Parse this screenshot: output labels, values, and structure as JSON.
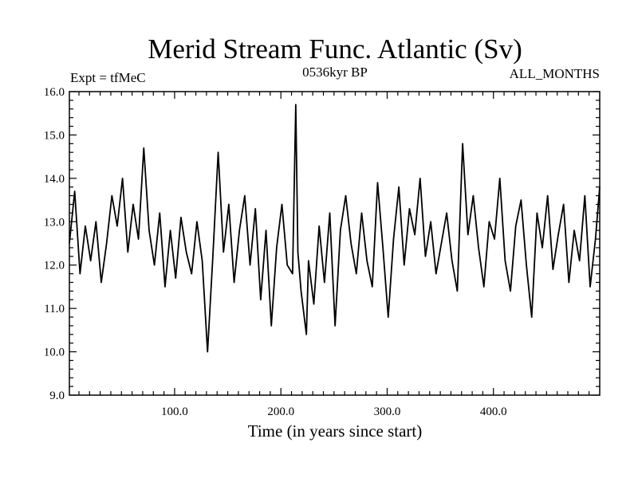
{
  "chart_data": {
    "type": "line",
    "title": "Merid Stream Func. Atlantic (Sv)",
    "subtitle_left": "Expt = tfMeC",
    "subtitle_center": "0536kyr BP",
    "subtitle_right": "ALL_MONTHS",
    "xlabel": "Time (in years since start)",
    "ylabel": "",
    "xlim": [
      1,
      500
    ],
    "ylim": [
      9.0,
      16.0
    ],
    "xticks": [
      100,
      200,
      300,
      400
    ],
    "xtick_labels": [
      "100.0",
      "200.0",
      "300.0",
      "400.0"
    ],
    "yticks": [
      9,
      10,
      11,
      12,
      13,
      14,
      15,
      16
    ],
    "ytick_labels": [
      "9.0",
      "10.0",
      "11.0",
      "12.0",
      "13.0",
      "14.0",
      "15.0",
      "16.0"
    ],
    "grid": false,
    "line_color": "#000000",
    "series": [
      {
        "x": [
          1,
          6,
          11,
          16,
          21,
          26,
          31,
          36,
          41,
          46,
          51,
          56,
          61,
          66,
          71,
          76,
          81,
          86,
          91,
          96,
          101,
          106,
          111,
          116,
          121,
          126,
          131,
          136,
          141,
          146,
          151,
          156,
          161,
          166,
          171,
          176,
          181,
          186,
          191,
          196,
          201,
          206,
          211,
          214,
          216,
          219,
          224,
          226,
          231,
          236,
          241,
          246,
          251,
          256,
          261,
          266,
          271,
          276,
          281,
          286,
          291,
          296,
          301,
          306,
          311,
          316,
          321,
          326,
          331,
          336,
          341,
          346,
          351,
          356,
          361,
          366,
          371,
          376,
          381,
          386,
          391,
          396,
          401,
          406,
          411,
          416,
          421,
          426,
          431,
          436,
          441,
          446,
          451,
          456,
          461,
          466,
          471,
          476,
          481,
          486,
          491,
          496,
          500
        ],
        "values": [
          12.5,
          13.7,
          11.8,
          12.9,
          12.1,
          13.0,
          11.6,
          12.5,
          13.6,
          12.9,
          14.0,
          12.3,
          13.4,
          12.6,
          14.7,
          12.8,
          12.0,
          13.2,
          11.5,
          12.8,
          11.7,
          13.1,
          12.3,
          11.8,
          13.0,
          12.1,
          10.0,
          12.2,
          14.6,
          12.3,
          13.4,
          11.6,
          12.8,
          13.6,
          12.0,
          13.3,
          11.2,
          12.8,
          10.6,
          12.4,
          13.4,
          12.0,
          11.8,
          15.7,
          12.3,
          11.4,
          10.4,
          12.1,
          11.1,
          12.9,
          11.6,
          13.2,
          10.6,
          12.8,
          13.6,
          12.5,
          11.8,
          13.2,
          12.1,
          11.5,
          13.9,
          12.4,
          10.8,
          12.6,
          13.8,
          12.0,
          13.3,
          12.7,
          14.0,
          12.2,
          13.0,
          11.8,
          12.5,
          13.2,
          12.1,
          11.4,
          14.8,
          12.7,
          13.6,
          12.4,
          11.5,
          13.0,
          12.6,
          14.0,
          12.1,
          11.4,
          12.9,
          13.5,
          12.0,
          10.8,
          13.2,
          12.4,
          13.6,
          11.9,
          12.7,
          13.4,
          11.6,
          12.8,
          12.1,
          13.6,
          11.5,
          12.6,
          13.8
        ]
      }
    ]
  }
}
